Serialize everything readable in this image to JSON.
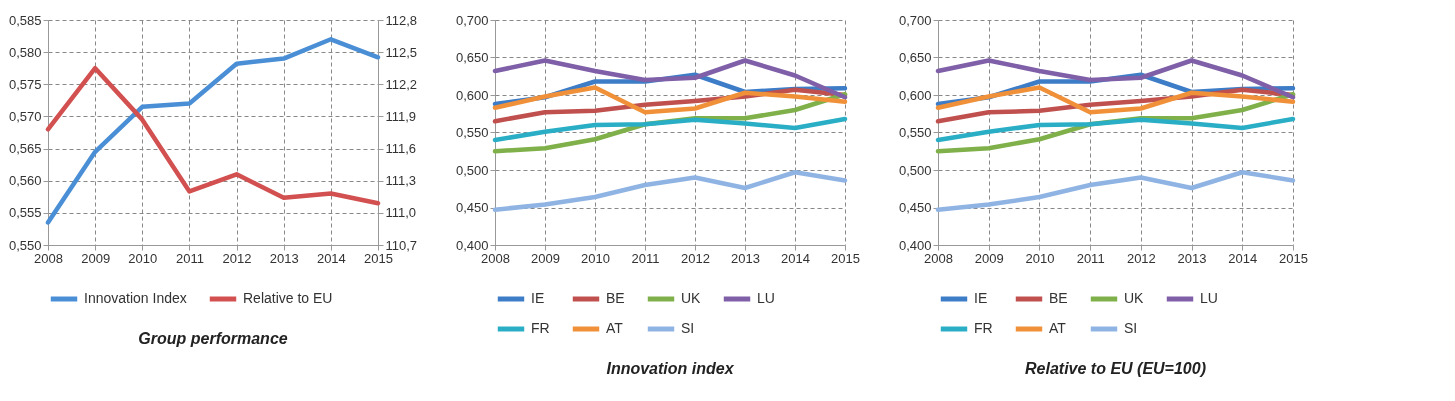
{
  "chart_data": [
    {
      "type": "line",
      "title": "Group performance",
      "categories": [
        "2008",
        "2009",
        "2010",
        "2011",
        "2012",
        "2013",
        "2014",
        "2015"
      ],
      "series": [
        {
          "name": "Innovation Index",
          "color": "#4a8fd6",
          "values": [
            0.5535,
            0.5645,
            0.5715,
            0.572,
            0.5782,
            0.579,
            0.582,
            0.5792
          ]
        },
        {
          "name": "Relative to EU",
          "color": "#d2504f",
          "axis": "y2",
          "values": [
            111.78,
            112.35,
            111.87,
            111.2,
            111.36,
            111.14,
            111.18,
            111.09
          ]
        }
      ],
      "ylim": [
        0.55,
        0.585
      ],
      "yticks": [
        {
          "value": 0.55,
          "label": "0,550"
        },
        {
          "value": 0.555,
          "label": "0,555"
        },
        {
          "value": 0.56,
          "label": "0,560"
        },
        {
          "value": 0.565,
          "label": "0,565"
        },
        {
          "value": 0.57,
          "label": "0,570"
        },
        {
          "value": 0.575,
          "label": "0,575"
        },
        {
          "value": 0.58,
          "label": "0,580"
        },
        {
          "value": 0.585,
          "label": "0,585"
        }
      ],
      "y2lim": [
        110.7,
        112.8
      ],
      "y2ticks": [
        {
          "value": 110.7,
          "label": "110,7"
        },
        {
          "value": 111,
          "label": "111,0"
        },
        {
          "value": 111.3,
          "label": "111,3"
        },
        {
          "value": 111.6,
          "label": "111,6"
        },
        {
          "value": 111.9,
          "label": "111,9"
        },
        {
          "value": 112.2,
          "label": "112,2"
        },
        {
          "value": 112.5,
          "label": "112,5"
        },
        {
          "value": 112.8,
          "label": "112,8"
        }
      ],
      "grid": true,
      "legend": "bottom"
    },
    {
      "type": "line",
      "title": "Innovation index",
      "categories": [
        "2008",
        "2009",
        "2010",
        "2011",
        "2012",
        "2013",
        "2014",
        "2015"
      ],
      "series": [
        {
          "name": "IE",
          "color": "#3d7cc6",
          "values": [
            0.588,
            0.597,
            0.618,
            0.618,
            0.627,
            0.604,
            0.608,
            0.609
          ]
        },
        {
          "name": "BE",
          "color": "#c0504d",
          "values": [
            0.565,
            0.577,
            0.579,
            0.587,
            0.592,
            0.598,
            0.607,
            0.6
          ]
        },
        {
          "name": "UK",
          "color": "#7fb04a",
          "values": [
            0.525,
            0.529,
            0.541,
            0.561,
            0.569,
            0.569,
            0.58,
            0.601
          ]
        },
        {
          "name": "LU",
          "color": "#7f5fa8",
          "values": [
            0.632,
            0.646,
            0.632,
            0.62,
            0.623,
            0.646,
            0.626,
            0.597
          ]
        },
        {
          "name": "FR",
          "color": "#2aaec6",
          "values": [
            0.54,
            0.551,
            0.56,
            0.561,
            0.567,
            0.562,
            0.556,
            0.568
          ]
        },
        {
          "name": "AT",
          "color": "#f0913a",
          "values": [
            0.583,
            0.598,
            0.61,
            0.577,
            0.582,
            0.603,
            0.598,
            0.591
          ]
        },
        {
          "name": "SI",
          "color": "#8fb4e3",
          "values": [
            0.447,
            0.454,
            0.464,
            0.48,
            0.49,
            0.476,
            0.497,
            0.486
          ]
        }
      ],
      "ylim": [
        0.4,
        0.7
      ],
      "yticks": [
        {
          "value": 0.4,
          "label": "0,400"
        },
        {
          "value": 0.45,
          "label": "0,450"
        },
        {
          "value": 0.5,
          "label": "0,500"
        },
        {
          "value": 0.55,
          "label": "0,550"
        },
        {
          "value": 0.6,
          "label": "0,600"
        },
        {
          "value": 0.65,
          "label": "0,650"
        },
        {
          "value": 0.7,
          "label": "0,700"
        }
      ],
      "grid": true,
      "legend": "bottom"
    },
    {
      "type": "line",
      "title": "Relative to EU (EU=100)",
      "categories": [
        "2008",
        "2009",
        "2010",
        "2011",
        "2012",
        "2013",
        "2014",
        "2015"
      ],
      "series": [
        {
          "name": "IE",
          "color": "#3d7cc6",
          "values": [
            0.588,
            0.597,
            0.618,
            0.618,
            0.627,
            0.604,
            0.608,
            0.609
          ]
        },
        {
          "name": "BE",
          "color": "#c0504d",
          "values": [
            0.565,
            0.577,
            0.579,
            0.587,
            0.592,
            0.598,
            0.607,
            0.6
          ]
        },
        {
          "name": "UK",
          "color": "#7fb04a",
          "values": [
            0.525,
            0.529,
            0.541,
            0.561,
            0.569,
            0.569,
            0.58,
            0.601
          ]
        },
        {
          "name": "LU",
          "color": "#7f5fa8",
          "values": [
            0.632,
            0.646,
            0.632,
            0.62,
            0.623,
            0.646,
            0.626,
            0.597
          ]
        },
        {
          "name": "FR",
          "color": "#2aaec6",
          "values": [
            0.54,
            0.551,
            0.56,
            0.561,
            0.567,
            0.562,
            0.556,
            0.568
          ]
        },
        {
          "name": "AT",
          "color": "#f0913a",
          "values": [
            0.583,
            0.598,
            0.61,
            0.577,
            0.582,
            0.603,
            0.598,
            0.591
          ]
        },
        {
          "name": "SI",
          "color": "#8fb4e3",
          "values": [
            0.447,
            0.454,
            0.464,
            0.48,
            0.49,
            0.476,
            0.497,
            0.486
          ]
        }
      ],
      "ylim": [
        0.4,
        0.7
      ],
      "yticks": [
        {
          "value": 0.4,
          "label": "0,400"
        },
        {
          "value": 0.45,
          "label": "0,450"
        },
        {
          "value": 0.5,
          "label": "0,500"
        },
        {
          "value": 0.55,
          "label": "0,550"
        },
        {
          "value": 0.6,
          "label": "0,600"
        },
        {
          "value": 0.65,
          "label": "0,650"
        },
        {
          "value": 0.7,
          "label": "0,700"
        }
      ],
      "grid": true,
      "legend": "bottom"
    }
  ]
}
